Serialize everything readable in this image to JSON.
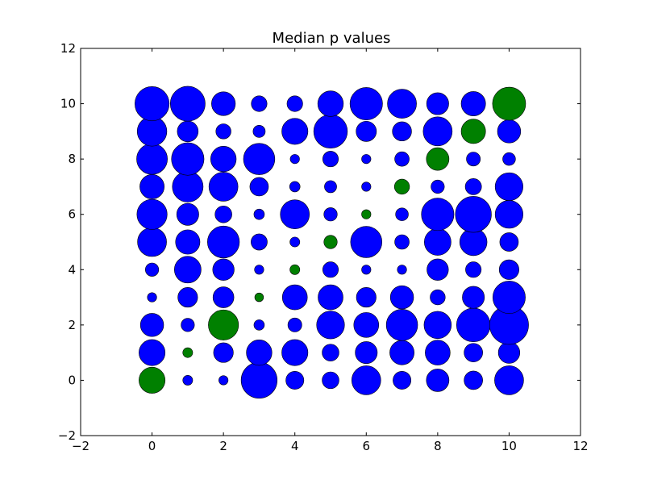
{
  "chart_data": {
    "type": "scatter",
    "title": "Median p values",
    "xlabel": "",
    "ylabel": "",
    "xlim": [
      -2,
      12
    ],
    "ylim": [
      -2,
      12
    ],
    "xticks": [
      -2,
      0,
      2,
      4,
      6,
      8,
      10,
      12
    ],
    "yticks": [
      -2,
      0,
      2,
      4,
      6,
      8,
      10,
      12
    ],
    "xtick_labels": [
      "−2",
      "0",
      "2",
      "4",
      "6",
      "8",
      "10",
      "12"
    ],
    "ytick_labels": [
      "−2",
      "0",
      "2",
      "4",
      "6",
      "8",
      "10",
      "12"
    ],
    "grid": false,
    "legend": "none",
    "colors": {
      "blue": "#0000ff",
      "green": "#008000"
    },
    "size_unit": "relative marker size (0–1)",
    "points": [
      {
        "x": 0,
        "y": 0,
        "s": 0.45,
        "c": "green"
      },
      {
        "x": 0,
        "y": 1,
        "s": 0.45,
        "c": "blue"
      },
      {
        "x": 0,
        "y": 2,
        "s": 0.4,
        "c": "blue"
      },
      {
        "x": 0,
        "y": 3,
        "s": 0.16,
        "c": "blue"
      },
      {
        "x": 0,
        "y": 4,
        "s": 0.23,
        "c": "blue"
      },
      {
        "x": 0,
        "y": 5,
        "s": 0.5,
        "c": "blue"
      },
      {
        "x": 0,
        "y": 6,
        "s": 0.52,
        "c": "blue"
      },
      {
        "x": 0,
        "y": 7,
        "s": 0.42,
        "c": "blue"
      },
      {
        "x": 0,
        "y": 8,
        "s": 0.53,
        "c": "blue"
      },
      {
        "x": 0,
        "y": 9,
        "s": 0.51,
        "c": "blue"
      },
      {
        "x": 0,
        "y": 10,
        "s": 0.59,
        "c": "blue"
      },
      {
        "x": 1,
        "y": 0,
        "s": 0.17,
        "c": "blue"
      },
      {
        "x": 1,
        "y": 1,
        "s": 0.17,
        "c": "green"
      },
      {
        "x": 1,
        "y": 2,
        "s": 0.23,
        "c": "blue"
      },
      {
        "x": 1,
        "y": 3,
        "s": 0.34,
        "c": "blue"
      },
      {
        "x": 1,
        "y": 4,
        "s": 0.46,
        "c": "blue"
      },
      {
        "x": 1,
        "y": 5,
        "s": 0.42,
        "c": "blue"
      },
      {
        "x": 1,
        "y": 6,
        "s": 0.38,
        "c": "blue"
      },
      {
        "x": 1,
        "y": 7,
        "s": 0.53,
        "c": "blue"
      },
      {
        "x": 1,
        "y": 8,
        "s": 0.56,
        "c": "blue"
      },
      {
        "x": 1,
        "y": 9,
        "s": 0.36,
        "c": "blue"
      },
      {
        "x": 1,
        "y": 10,
        "s": 0.6,
        "c": "blue"
      },
      {
        "x": 2,
        "y": 0,
        "s": 0.16,
        "c": "blue"
      },
      {
        "x": 2,
        "y": 1,
        "s": 0.34,
        "c": "blue"
      },
      {
        "x": 2,
        "y": 2,
        "s": 0.52,
        "c": "green"
      },
      {
        "x": 2,
        "y": 3,
        "s": 0.36,
        "c": "blue"
      },
      {
        "x": 2,
        "y": 4,
        "s": 0.37,
        "c": "blue"
      },
      {
        "x": 2,
        "y": 5,
        "s": 0.55,
        "c": "blue"
      },
      {
        "x": 2,
        "y": 6,
        "s": 0.29,
        "c": "blue"
      },
      {
        "x": 2,
        "y": 7,
        "s": 0.5,
        "c": "blue"
      },
      {
        "x": 2,
        "y": 8,
        "s": 0.44,
        "c": "blue"
      },
      {
        "x": 2,
        "y": 9,
        "s": 0.26,
        "c": "blue"
      },
      {
        "x": 2,
        "y": 10,
        "s": 0.41,
        "c": "blue"
      },
      {
        "x": 3,
        "y": 0,
        "s": 0.62,
        "c": "blue"
      },
      {
        "x": 3,
        "y": 1,
        "s": 0.44,
        "c": "blue"
      },
      {
        "x": 3,
        "y": 2,
        "s": 0.18,
        "c": "blue"
      },
      {
        "x": 3,
        "y": 3,
        "s": 0.15,
        "c": "green"
      },
      {
        "x": 3,
        "y": 4,
        "s": 0.16,
        "c": "blue"
      },
      {
        "x": 3,
        "y": 5,
        "s": 0.28,
        "c": "blue"
      },
      {
        "x": 3,
        "y": 6,
        "s": 0.18,
        "c": "blue"
      },
      {
        "x": 3,
        "y": 7,
        "s": 0.32,
        "c": "blue"
      },
      {
        "x": 3,
        "y": 8,
        "s": 0.54,
        "c": "blue"
      },
      {
        "x": 3,
        "y": 9,
        "s": 0.21,
        "c": "blue"
      },
      {
        "x": 3,
        "y": 10,
        "s": 0.27,
        "c": "blue"
      },
      {
        "x": 4,
        "y": 0,
        "s": 0.31,
        "c": "blue"
      },
      {
        "x": 4,
        "y": 1,
        "s": 0.45,
        "c": "blue"
      },
      {
        "x": 4,
        "y": 2,
        "s": 0.24,
        "c": "blue"
      },
      {
        "x": 4,
        "y": 3,
        "s": 0.43,
        "c": "blue"
      },
      {
        "x": 4,
        "y": 4,
        "s": 0.17,
        "c": "green"
      },
      {
        "x": 4,
        "y": 5,
        "s": 0.17,
        "c": "blue"
      },
      {
        "x": 4,
        "y": 6,
        "s": 0.5,
        "c": "blue"
      },
      {
        "x": 4,
        "y": 7,
        "s": 0.18,
        "c": "blue"
      },
      {
        "x": 4,
        "y": 8,
        "s": 0.16,
        "c": "blue"
      },
      {
        "x": 4,
        "y": 9,
        "s": 0.45,
        "c": "blue"
      },
      {
        "x": 4,
        "y": 10,
        "s": 0.27,
        "c": "blue"
      },
      {
        "x": 5,
        "y": 0,
        "s": 0.29,
        "c": "blue"
      },
      {
        "x": 5,
        "y": 1,
        "s": 0.29,
        "c": "blue"
      },
      {
        "x": 5,
        "y": 2,
        "s": 0.48,
        "c": "blue"
      },
      {
        "x": 5,
        "y": 3,
        "s": 0.43,
        "c": "blue"
      },
      {
        "x": 5,
        "y": 4,
        "s": 0.27,
        "c": "blue"
      },
      {
        "x": 5,
        "y": 5,
        "s": 0.23,
        "c": "green"
      },
      {
        "x": 5,
        "y": 6,
        "s": 0.23,
        "c": "blue"
      },
      {
        "x": 5,
        "y": 7,
        "s": 0.21,
        "c": "blue"
      },
      {
        "x": 5,
        "y": 8,
        "s": 0.27,
        "c": "blue"
      },
      {
        "x": 5,
        "y": 9,
        "s": 0.58,
        "c": "blue"
      },
      {
        "x": 5,
        "y": 10,
        "s": 0.44,
        "c": "blue"
      },
      {
        "x": 6,
        "y": 0,
        "s": 0.5,
        "c": "blue"
      },
      {
        "x": 6,
        "y": 1,
        "s": 0.38,
        "c": "blue"
      },
      {
        "x": 6,
        "y": 2,
        "s": 0.43,
        "c": "blue"
      },
      {
        "x": 6,
        "y": 3,
        "s": 0.34,
        "c": "blue"
      },
      {
        "x": 6,
        "y": 4,
        "s": 0.16,
        "c": "blue"
      },
      {
        "x": 6,
        "y": 5,
        "s": 0.54,
        "c": "blue"
      },
      {
        "x": 6,
        "y": 6,
        "s": 0.16,
        "c": "green"
      },
      {
        "x": 6,
        "y": 7,
        "s": 0.16,
        "c": "blue"
      },
      {
        "x": 6,
        "y": 8,
        "s": 0.16,
        "c": "blue"
      },
      {
        "x": 6,
        "y": 9,
        "s": 0.35,
        "c": "blue"
      },
      {
        "x": 6,
        "y": 10,
        "s": 0.56,
        "c": "blue"
      },
      {
        "x": 7,
        "y": 0,
        "s": 0.31,
        "c": "blue"
      },
      {
        "x": 7,
        "y": 1,
        "s": 0.42,
        "c": "blue"
      },
      {
        "x": 7,
        "y": 2,
        "s": 0.54,
        "c": "blue"
      },
      {
        "x": 7,
        "y": 3,
        "s": 0.4,
        "c": "blue"
      },
      {
        "x": 7,
        "y": 4,
        "s": 0.16,
        "c": "blue"
      },
      {
        "x": 7,
        "y": 5,
        "s": 0.25,
        "c": "blue"
      },
      {
        "x": 7,
        "y": 6,
        "s": 0.22,
        "c": "blue"
      },
      {
        "x": 7,
        "y": 7,
        "s": 0.26,
        "c": "green"
      },
      {
        "x": 7,
        "y": 8,
        "s": 0.25,
        "c": "blue"
      },
      {
        "x": 7,
        "y": 9,
        "s": 0.33,
        "c": "blue"
      },
      {
        "x": 7,
        "y": 10,
        "s": 0.5,
        "c": "blue"
      },
      {
        "x": 8,
        "y": 0,
        "s": 0.39,
        "c": "blue"
      },
      {
        "x": 8,
        "y": 1,
        "s": 0.43,
        "c": "blue"
      },
      {
        "x": 8,
        "y": 2,
        "s": 0.47,
        "c": "blue"
      },
      {
        "x": 8,
        "y": 3,
        "s": 0.26,
        "c": "blue"
      },
      {
        "x": 8,
        "y": 4,
        "s": 0.37,
        "c": "blue"
      },
      {
        "x": 8,
        "y": 5,
        "s": 0.46,
        "c": "blue"
      },
      {
        "x": 8,
        "y": 6,
        "s": 0.56,
        "c": "blue"
      },
      {
        "x": 8,
        "y": 7,
        "s": 0.23,
        "c": "blue"
      },
      {
        "x": 8,
        "y": 8,
        "s": 0.39,
        "c": "green"
      },
      {
        "x": 8,
        "y": 9,
        "s": 0.5,
        "c": "blue"
      },
      {
        "x": 8,
        "y": 10,
        "s": 0.38,
        "c": "blue"
      },
      {
        "x": 9,
        "y": 0,
        "s": 0.32,
        "c": "blue"
      },
      {
        "x": 9,
        "y": 1,
        "s": 0.32,
        "c": "blue"
      },
      {
        "x": 9,
        "y": 2,
        "s": 0.58,
        "c": "blue"
      },
      {
        "x": 9,
        "y": 3,
        "s": 0.38,
        "c": "blue"
      },
      {
        "x": 9,
        "y": 4,
        "s": 0.27,
        "c": "blue"
      },
      {
        "x": 9,
        "y": 5,
        "s": 0.47,
        "c": "blue"
      },
      {
        "x": 9,
        "y": 6,
        "s": 0.62,
        "c": "blue"
      },
      {
        "x": 9,
        "y": 7,
        "s": 0.28,
        "c": "blue"
      },
      {
        "x": 9,
        "y": 8,
        "s": 0.24,
        "c": "blue"
      },
      {
        "x": 9,
        "y": 9,
        "s": 0.42,
        "c": "green"
      },
      {
        "x": 9,
        "y": 10,
        "s": 0.42,
        "c": "blue"
      },
      {
        "x": 10,
        "y": 0,
        "s": 0.5,
        "c": "blue"
      },
      {
        "x": 10,
        "y": 1,
        "s": 0.37,
        "c": "blue"
      },
      {
        "x": 10,
        "y": 2,
        "s": 0.67,
        "c": "blue"
      },
      {
        "x": 10,
        "y": 3,
        "s": 0.56,
        "c": "blue"
      },
      {
        "x": 10,
        "y": 4,
        "s": 0.34,
        "c": "blue"
      },
      {
        "x": 10,
        "y": 5,
        "s": 0.32,
        "c": "blue"
      },
      {
        "x": 10,
        "y": 6,
        "s": 0.48,
        "c": "blue"
      },
      {
        "x": 10,
        "y": 7,
        "s": 0.48,
        "c": "blue"
      },
      {
        "x": 10,
        "y": 8,
        "s": 0.22,
        "c": "blue"
      },
      {
        "x": 10,
        "y": 9,
        "s": 0.4,
        "c": "blue"
      },
      {
        "x": 10,
        "y": 10,
        "s": 0.57,
        "c": "green"
      }
    ]
  }
}
